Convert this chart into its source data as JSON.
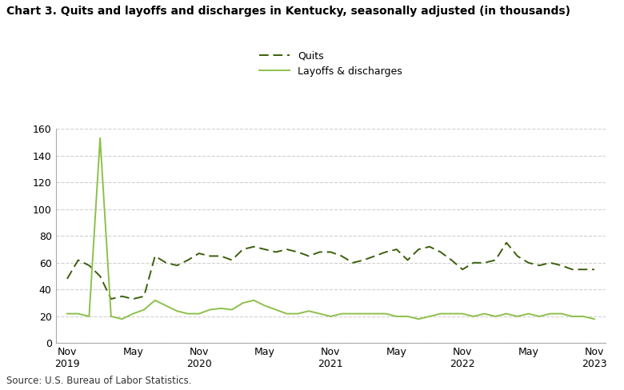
{
  "title": "Chart 3. Quits and layoffs and discharges in Kentucky, seasonally adjusted (in thousands)",
  "source": "Source: U.S. Bureau of Labor Statistics.",
  "quits_color": "#3a5f0b",
  "layoffs_color": "#8dc04a",
  "background_color": "#ffffff",
  "ylim": [
    0,
    160
  ],
  "yticks": [
    0,
    20,
    40,
    60,
    80,
    100,
    120,
    140,
    160
  ],
  "legend_labels": [
    "Quits",
    "Layoffs & discharges"
  ],
  "xtick_labels": [
    "Nov\n2019",
    "May",
    "Nov\n2020",
    "May",
    "Nov\n2021",
    "May",
    "Nov\n2022",
    "May",
    "Nov\n2023"
  ],
  "quits": [
    48,
    62,
    58,
    50,
    33,
    35,
    33,
    35,
    65,
    60,
    58,
    62,
    67,
    65,
    65,
    62,
    70,
    72,
    70,
    68,
    70,
    68,
    65,
    68,
    68,
    65,
    60,
    62,
    65,
    68,
    70,
    62,
    70,
    72,
    68,
    62,
    55,
    60,
    60,
    62,
    75,
    65,
    60,
    58,
    60,
    58,
    55,
    55,
    55
  ],
  "layoffs": [
    22,
    22,
    20,
    153,
    20,
    18,
    22,
    25,
    32,
    28,
    24,
    22,
    22,
    25,
    26,
    25,
    30,
    32,
    28,
    25,
    22,
    22,
    24,
    22,
    20,
    22,
    22,
    22,
    22,
    22,
    20,
    20,
    18,
    20,
    22,
    22,
    22,
    20,
    22,
    20,
    22,
    20,
    22,
    20,
    22,
    22,
    20,
    20,
    18
  ],
  "n_points": 49
}
